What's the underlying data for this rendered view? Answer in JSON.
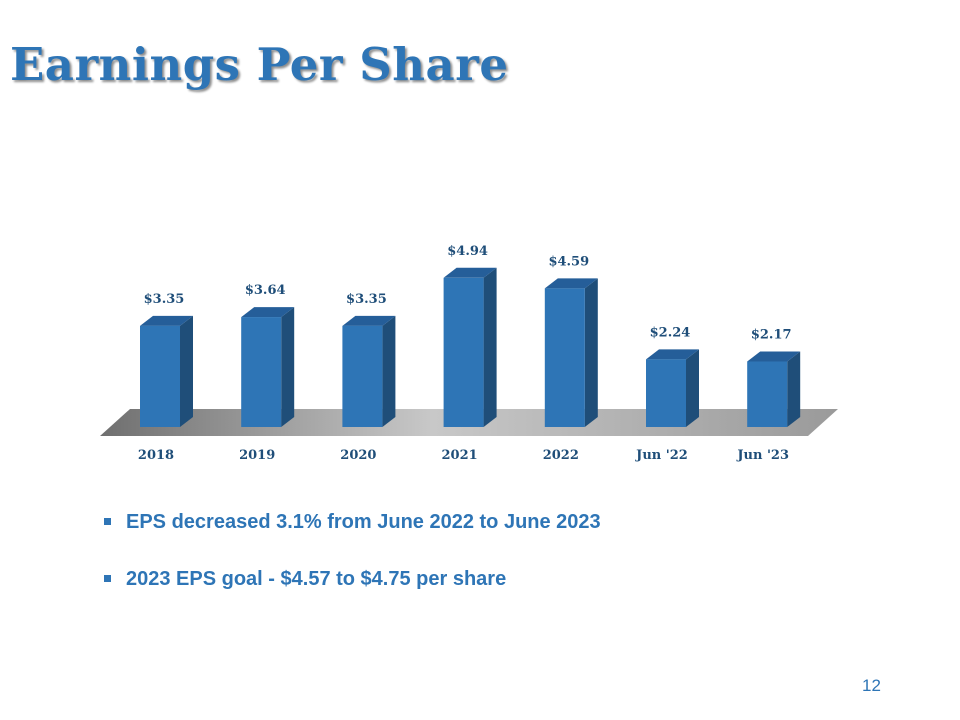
{
  "slide": {
    "title": "Earnings Per Share",
    "page_number": "12"
  },
  "bullets": [
    "EPS decreased 3.1% from June 2022 to June 2023",
    "2023 EPS goal - $4.57 to $4.75 per share"
  ],
  "colors": {
    "accent": "#2e75b6",
    "bar_front": "#2e75b6",
    "bar_side": "#1f4e79",
    "bar_top": "#255e99",
    "label_text": "#1f4e79",
    "floor": "#a6a6a6"
  },
  "chart_data": {
    "type": "bar",
    "style": "3d-column",
    "categories": [
      "2018",
      "2019",
      "2020",
      "2021",
      "2022",
      "Jun '22",
      "Jun '23"
    ],
    "values": [
      3.35,
      3.64,
      3.35,
      4.94,
      4.59,
      2.24,
      2.17
    ],
    "data_labels": [
      "$3.35",
      "$3.64",
      "$3.35",
      "$4.94",
      "$4.59",
      "$2.24",
      "$2.17"
    ],
    "title": "",
    "xlabel": "",
    "ylabel": "",
    "ylim": [
      0,
      5
    ],
    "grid": false,
    "legend": "none"
  }
}
